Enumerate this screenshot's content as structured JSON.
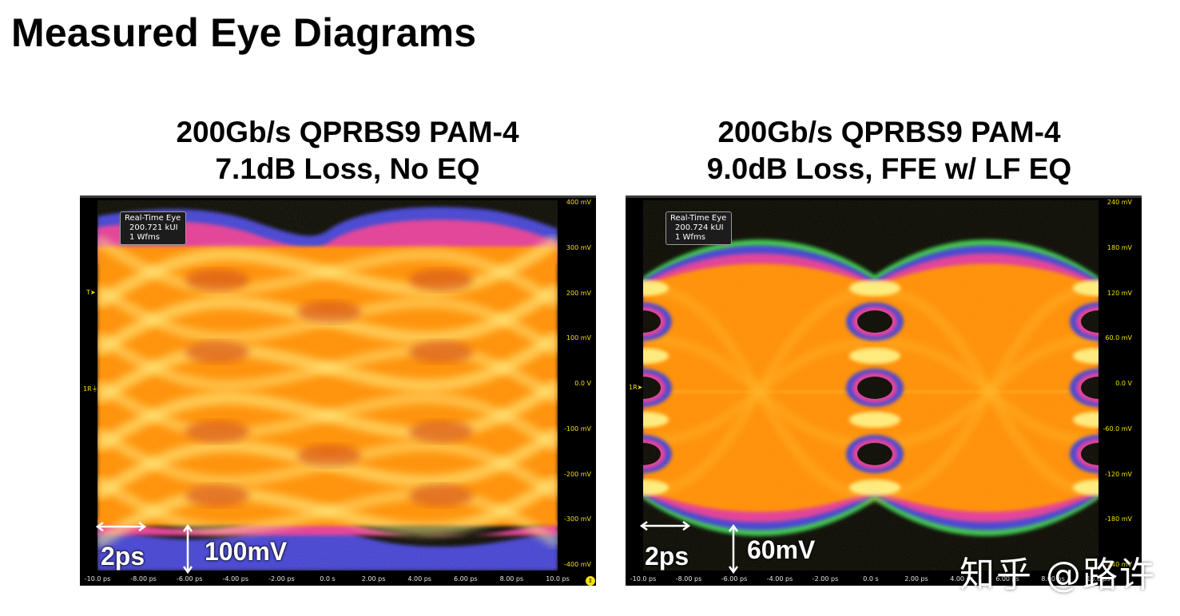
{
  "slide": {
    "title": "Measured Eye Diagrams"
  },
  "panels": [
    {
      "title_line1": "200Gb/s QPRBS9 PAM-4",
      "title_line2": "7.1dB Loss, No EQ",
      "readout": {
        "line1": "Real-Time Eye",
        "line2": "200.721 kUI",
        "line3": "1 Wfms"
      },
      "y_ticks": [
        "400 mV",
        "300 mV",
        "200 mV",
        "100 mV",
        "0.0 V",
        "-100 mV",
        "-200 mV",
        "-300 mV",
        "-400 mV"
      ],
      "x_ticks": [
        "-10.0 ps",
        "-8.00 ps",
        "-6.00 ps",
        "-4.00 ps",
        "-2.00 ps",
        "0.0 s",
        "2.00 ps",
        "4.00 ps",
        "6.00 ps",
        "8.00 ps",
        "10.0 ps"
      ],
      "time_scale_label": "2ps",
      "voltage_scale_label": "100mV",
      "trigger_marker": "T",
      "ref_marker": "1R"
    },
    {
      "title_line1": "200Gb/s QPRBS9 PAM-4",
      "title_line2": "9.0dB Loss, FFE w/ LF EQ",
      "readout": {
        "line1": "Real-Time Eye",
        "line2": "200.724 kUI",
        "line3": "1 Wfms"
      },
      "y_ticks": [
        "240 mV",
        "180 mV",
        "120 mV",
        "60.0 mV",
        "0.0 V",
        "-60.0 mV",
        "-120 mV",
        "-180 mV",
        "-240 mV"
      ],
      "x_ticks": [
        "-10.0 ps",
        "-8.00 ps",
        "-6.00 ps",
        "-4.00 ps",
        "-2.00 ps",
        "0.0 s",
        "2.00 ps",
        "4.00 ps",
        "6.00 ps",
        "8.00 ps",
        "10.0 ps"
      ],
      "time_scale_label": "2ps",
      "voltage_scale_label": "60mV",
      "ref_marker": "1R"
    }
  ],
  "watermark": "知乎 @路许",
  "colors": {
    "scope_bg": "#000000",
    "axis_label": "#f2e100",
    "density_low": "#3b3bd8",
    "density_mid": "#e0359a",
    "density_high": "#ff8a00",
    "density_peak": "#fff58a",
    "eye_edge": "#31c64a"
  }
}
